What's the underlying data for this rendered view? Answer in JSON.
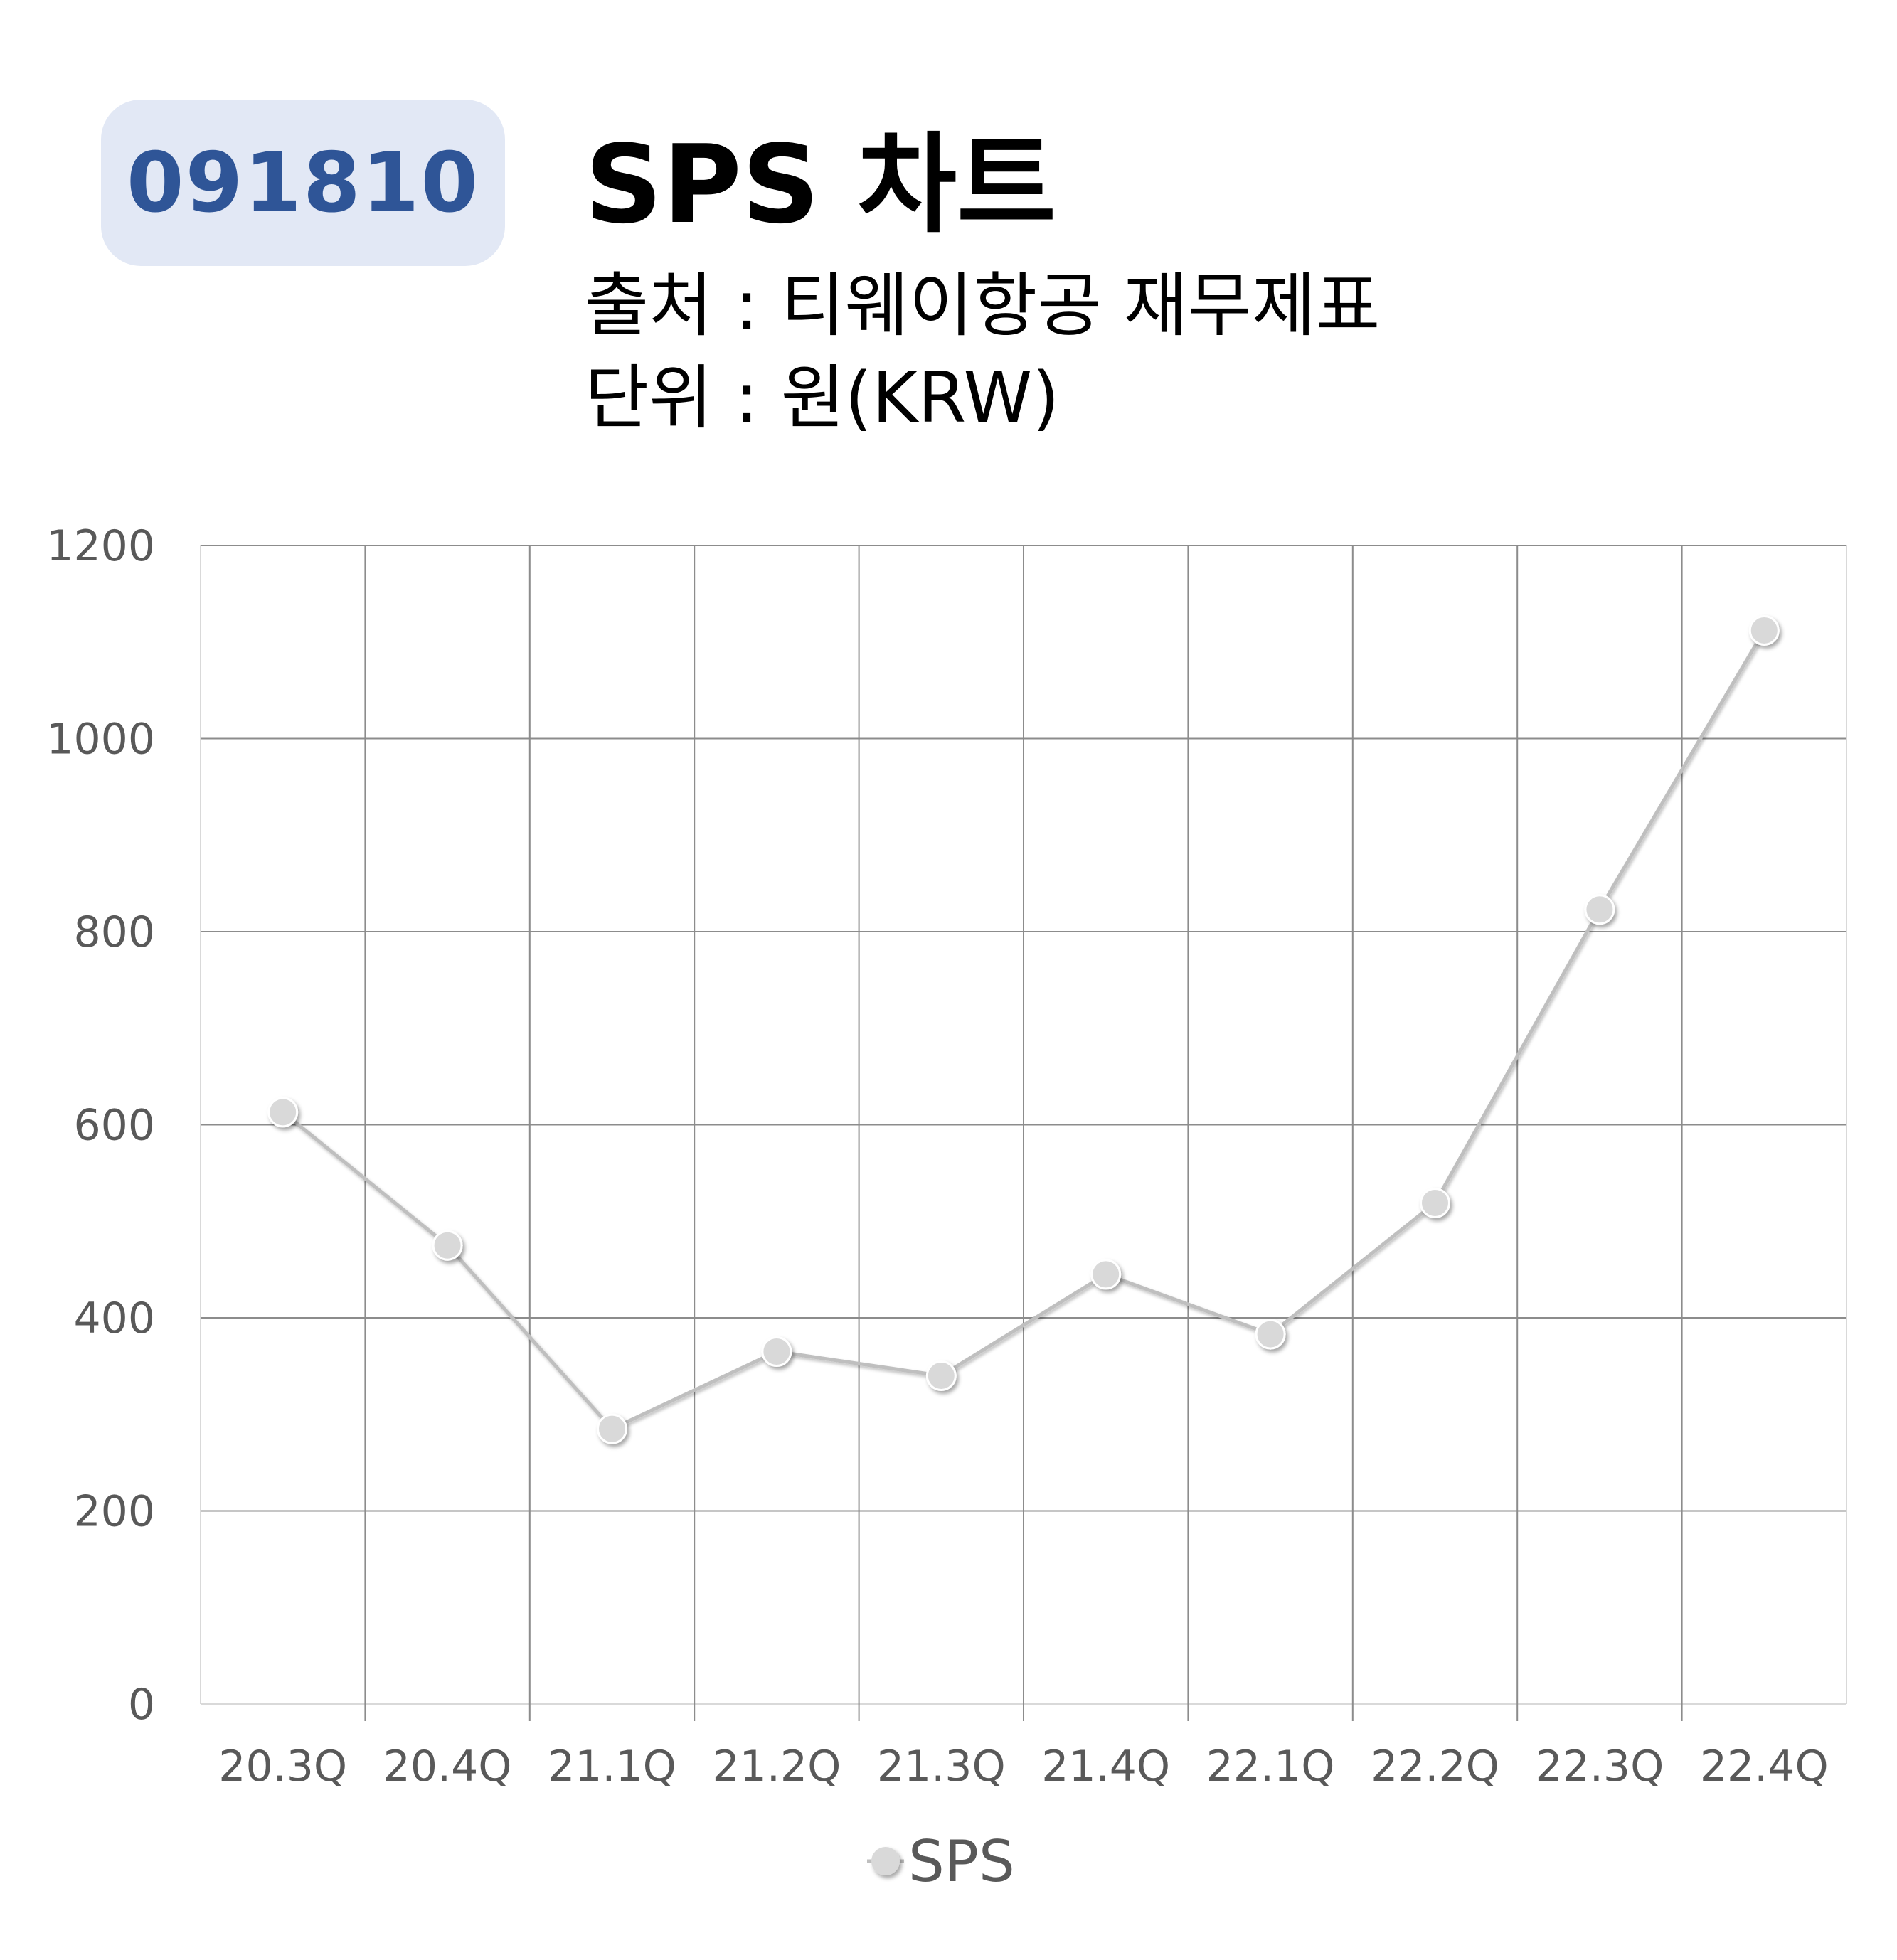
{
  "header": {
    "code": "091810",
    "title": "SPS 차트",
    "source": "출처 : 티웨이항공 재무제표",
    "unit": "단위 : 원(KRW)"
  },
  "colors": {
    "badge_bg": "#e2e8f5",
    "badge_text": "#2f5597",
    "line": "#bfbfbf",
    "marker": "#d9d9d9",
    "grid": "#8c8c8c",
    "tick_text": "#595959"
  },
  "chart_data": {
    "type": "line",
    "categories": [
      "20.3Q",
      "20.4Q",
      "21.1Q",
      "21.2Q",
      "21.3Q",
      "21.4Q",
      "22.1Q",
      "22.2Q",
      "22.3Q",
      "22.4Q"
    ],
    "series": [
      {
        "name": "SPS",
        "values": [
          613,
          475,
          285,
          365,
          340,
          445,
          383,
          519,
          823,
          1112
        ]
      }
    ],
    "y_ticks": [
      "0",
      "200",
      "400",
      "600",
      "800",
      "1000",
      "1200"
    ],
    "ylim": [
      0,
      1200
    ],
    "grid": true,
    "legend_position": "bottom"
  }
}
